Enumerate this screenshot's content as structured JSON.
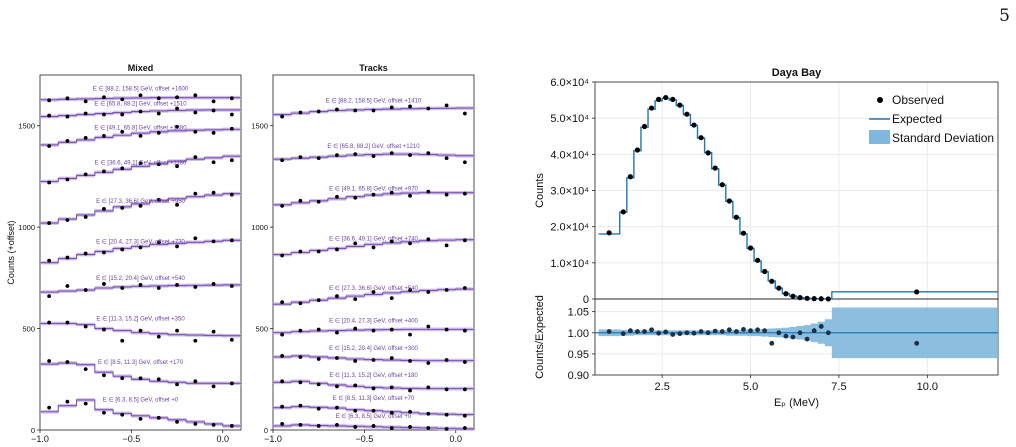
{
  "page_number": "5",
  "chart_data": [
    {
      "type": "line",
      "title": "Mixed",
      "ylabel": "Counts (+offset)",
      "xlim": [
        -1.0,
        0.1
      ],
      "ylim": [
        0,
        1750
      ],
      "x_ticks": [
        -1.0,
        -0.5,
        0.0
      ],
      "x_tick_labels": [
        "−1.0",
        "−0.5",
        "0.0"
      ],
      "y_ticks": [
        0,
        500,
        1000,
        1500
      ],
      "y_tick_labels": [
        "0",
        "500",
        "1000",
        "1500"
      ],
      "line_color": "#7b52b0",
      "band_color": "#c8b4e4",
      "x": [
        -1.0,
        -0.9,
        -0.8,
        -0.7,
        -0.6,
        -0.5,
        -0.4,
        -0.3,
        -0.2,
        -0.1,
        0.0,
        0.1
      ],
      "series": [
        {
          "label": "E ∈ [6.3, 8.5] GeV, offset +0",
          "expected": [
            90,
            120,
            148,
            100,
            82,
            70,
            60,
            50,
            40,
            30,
            20,
            20
          ],
          "observed": [
            110,
            140,
            130,
            85,
            75,
            55,
            60,
            40,
            30,
            25,
            20
          ]
        },
        {
          "label": "E ∈ [8.5, 11.3] GeV, offset +170",
          "expected": [
            325,
            330,
            322,
            285,
            265,
            250,
            240,
            235,
            230,
            230,
            230,
            230
          ],
          "observed": [
            340,
            335,
            300,
            270,
            255,
            255,
            250,
            225,
            240,
            215,
            230
          ]
        },
        {
          "label": "E ∈ [11.3, 15.2] GeV, offset +350",
          "expected": [
            525,
            525,
            520,
            500,
            490,
            480,
            475,
            470,
            468,
            466,
            465,
            465
          ],
          "observed": [
            530,
            530,
            510,
            495,
            440,
            490,
            460,
            490,
            440,
            485,
            445
          ]
        },
        {
          "label": "E ∈ [15.2, 20.4] GeV, offset +540",
          "expected": [
            680,
            685,
            690,
            700,
            705,
            708,
            710,
            712,
            713,
            714,
            715,
            715
          ],
          "observed": [
            660,
            710,
            690,
            720,
            700,
            715,
            700,
            715,
            705,
            720,
            710
          ]
        },
        {
          "label": "E ∈ [20.4, 27.3] GeV, offset +730",
          "expected": [
            825,
            845,
            865,
            880,
            895,
            905,
            915,
            920,
            925,
            930,
            935,
            935
          ],
          "observed": [
            835,
            850,
            870,
            875,
            890,
            900,
            925,
            905,
            945,
            930,
            935
          ]
        },
        {
          "label": "E ∈ [27.3, 36.6] GeV, offset +950",
          "expected": [
            1020,
            1040,
            1060,
            1080,
            1100,
            1115,
            1130,
            1140,
            1150,
            1158,
            1165,
            1165
          ],
          "observed": [
            1020,
            1035,
            1050,
            1090,
            1095,
            1105,
            1135,
            1110,
            1165,
            1170,
            1160
          ]
        },
        {
          "label": "E ∈ [36.6, 49.1] GeV, offset +1180",
          "expected": [
            1225,
            1240,
            1255,
            1270,
            1285,
            1300,
            1312,
            1325,
            1335,
            1342,
            1350,
            1350
          ],
          "observed": [
            1220,
            1235,
            1260,
            1275,
            1290,
            1315,
            1310,
            1300,
            1345,
            1320,
            1330
          ]
        },
        {
          "label": "E ∈ [49.1, 65.8] GeV, offset +1380",
          "expected": [
            1405,
            1418,
            1430,
            1442,
            1453,
            1463,
            1470,
            1475,
            1478,
            1480,
            1482,
            1482
          ],
          "observed": [
            1400,
            1425,
            1440,
            1450,
            1470,
            1450,
            1465,
            1495,
            1470,
            1465,
            1485
          ]
        },
        {
          "label": "E ∈ [65.8, 88.2] GeV, offset +1510",
          "expected": [
            1545,
            1550,
            1555,
            1560,
            1565,
            1570,
            1573,
            1575,
            1577,
            1578,
            1578,
            1578
          ],
          "observed": [
            1550,
            1545,
            1560,
            1555,
            1555,
            1570,
            1560,
            1585,
            1565,
            1575,
            1555
          ]
        },
        {
          "label": "E ∈ [88.2, 158.5] GeV, offset +1600",
          "expected": [
            1628,
            1630,
            1632,
            1634,
            1636,
            1637,
            1638,
            1638,
            1638,
            1638,
            1638,
            1638
          ],
          "observed": [
            1625,
            1635,
            1620,
            1640,
            1630,
            1650,
            1635,
            1640,
            1650,
            1620,
            1635
          ]
        }
      ]
    },
    {
      "type": "line",
      "title": "Tracks",
      "xlim": [
        -1.0,
        0.1
      ],
      "ylim": [
        0,
        1750
      ],
      "x_ticks": [
        -1.0,
        -0.5,
        0.0
      ],
      "x_tick_labels": [
        "−1.0",
        "−0.5",
        "0.0"
      ],
      "y_ticks": [
        0,
        500,
        1000,
        1500
      ],
      "y_tick_labels": [
        "0",
        "500",
        "1000",
        "1500"
      ],
      "line_color": "#7b52b0",
      "band_color": "#c8b4e4",
      "x": [
        -1.0,
        -0.9,
        -0.8,
        -0.7,
        -0.6,
        -0.5,
        -0.4,
        -0.3,
        -0.2,
        -0.1,
        0.0,
        0.1
      ],
      "series": [
        {
          "label": "E ∈ [6.3, 8.5] GeV, offset +0",
          "expected": [
            20,
            25,
            22,
            20,
            18,
            16,
            14,
            12,
            10,
            8,
            6,
            6
          ],
          "observed": [
            30,
            25,
            20,
            25,
            15,
            20,
            10,
            15,
            10,
            5,
            10
          ]
        },
        {
          "label": "E ∈ [8.5, 11.3] GeV, offset +70",
          "expected": [
            110,
            115,
            112,
            108,
            100,
            95,
            90,
            85,
            80,
            78,
            76,
            76
          ],
          "observed": [
            115,
            120,
            105,
            110,
            95,
            95,
            85,
            90,
            80,
            75,
            70
          ]
        },
        {
          "label": "E ∈ [11.3, 15.2] GeV, offset +180",
          "expected": [
            235,
            240,
            230,
            222,
            215,
            210,
            207,
            205,
            204,
            204,
            204,
            204
          ],
          "observed": [
            240,
            235,
            225,
            215,
            220,
            205,
            210,
            195,
            210,
            200,
            200
          ]
        },
        {
          "label": "E ∈ [15.2, 20.4] GeV, offset +300",
          "expected": [
            360,
            365,
            360,
            355,
            350,
            347,
            345,
            343,
            342,
            342,
            342,
            342
          ],
          "observed": [
            365,
            360,
            350,
            355,
            340,
            345,
            355,
            340,
            330,
            345,
            335
          ]
        },
        {
          "label": "E ∈ [20.4, 27.3] GeV, offset +400",
          "expected": [
            480,
            485,
            488,
            490,
            492,
            494,
            495,
            496,
            496,
            496,
            496,
            496
          ],
          "observed": [
            470,
            490,
            495,
            480,
            500,
            490,
            495,
            470,
            510,
            495,
            490
          ]
        },
        {
          "label": "E ∈ [27.3, 36.6] GeV, offset +540",
          "expected": [
            620,
            630,
            640,
            650,
            660,
            668,
            676,
            682,
            688,
            692,
            695,
            695
          ],
          "observed": [
            630,
            625,
            640,
            660,
            645,
            680,
            650,
            690,
            680,
            690,
            700
          ]
        },
        {
          "label": "E ∈ [36.6, 49.1] GeV, offset +740",
          "expected": [
            865,
            875,
            885,
            895,
            905,
            915,
            922,
            928,
            933,
            936,
            938,
            938
          ],
          "observed": [
            860,
            880,
            880,
            890,
            920,
            900,
            930,
            920,
            940,
            910,
            935
          ]
        },
        {
          "label": "E ∈ [49.1, 65.8] GeV, offset +970",
          "expected": [
            1110,
            1120,
            1130,
            1140,
            1150,
            1158,
            1164,
            1168,
            1170,
            1170,
            1170,
            1170
          ],
          "observed": [
            1105,
            1130,
            1125,
            1150,
            1145,
            1160,
            1170,
            1155,
            1175,
            1160,
            1165
          ]
        },
        {
          "label": "E ∈ [65.8, 88.2] GeV, offset +1210",
          "expected": [
            1335,
            1340,
            1345,
            1350,
            1355,
            1358,
            1360,
            1360,
            1358,
            1355,
            1352,
            1352
          ],
          "observed": [
            1330,
            1345,
            1340,
            1355,
            1360,
            1350,
            1365,
            1355,
            1365,
            1340,
            1320
          ]
        },
        {
          "label": "E ∈ [88.2, 158.5] GeV, offset +1410",
          "expected": [
            1555,
            1562,
            1570,
            1575,
            1578,
            1580,
            1582,
            1584,
            1585,
            1586,
            1587,
            1587
          ],
          "observed": [
            1545,
            1565,
            1570,
            1580,
            1575,
            1575,
            1590,
            1595,
            1585,
            1600,
            1560
          ]
        }
      ]
    },
    {
      "type": "line",
      "title": "Daya Bay",
      "ylabel": "Counts",
      "xlim": [
        0.6,
        12.0
      ],
      "ylim": [
        0,
        60000
      ],
      "x_ticks": [
        2.5,
        5.0,
        7.5,
        10.0
      ],
      "y_ticks": [
        0,
        10000,
        20000,
        30000,
        40000,
        50000,
        60000
      ],
      "y_tick_labels": [
        "0",
        "1.0×10⁴",
        "2.0×10⁴",
        "3.0×10⁴",
        "4.0×10⁴",
        "5.0×10⁴",
        "6.0×10⁴"
      ],
      "legend_position": "top-right",
      "legend": [
        "Observed",
        "Expected",
        "Standard Deviation"
      ],
      "expected_color": "#1f77b4",
      "band_color": "#7fb8dc",
      "bin_edges": [
        0.7,
        1.3,
        1.5,
        1.7,
        1.9,
        2.1,
        2.3,
        2.5,
        2.7,
        2.9,
        3.1,
        3.3,
        3.5,
        3.7,
        3.9,
        4.1,
        4.3,
        4.5,
        4.7,
        4.9,
        5.1,
        5.3,
        5.5,
        5.7,
        5.9,
        6.1,
        6.3,
        6.5,
        6.7,
        6.9,
        7.1,
        7.3,
        12.0
      ],
      "expected": [
        18000,
        24000,
        33500,
        41000,
        47500,
        52500,
        54800,
        55500,
        55000,
        53500,
        51000,
        48000,
        44500,
        40500,
        36000,
        31500,
        27000,
        22500,
        18000,
        14000,
        10500,
        7500,
        5000,
        3000,
        1500,
        800,
        400,
        200,
        100,
        50,
        20,
        2000
      ],
      "observed_x": [
        1.0,
        1.4,
        1.6,
        1.8,
        2.0,
        2.2,
        2.4,
        2.6,
        2.8,
        3.0,
        3.2,
        3.4,
        3.6,
        3.8,
        4.0,
        4.2,
        4.4,
        4.6,
        4.8,
        5.0,
        5.2,
        5.4,
        5.6,
        5.8,
        6.0,
        6.2,
        6.4,
        6.6,
        6.8,
        7.0,
        7.2,
        9.7
      ],
      "observed": [
        18300,
        24100,
        33800,
        41200,
        47700,
        52800,
        55200,
        55700,
        55200,
        53600,
        51100,
        48100,
        44600,
        40400,
        36200,
        31600,
        27100,
        22600,
        18200,
        14100,
        10700,
        7600,
        4900,
        3000,
        1450,
        780,
        380,
        190,
        95,
        60,
        20,
        1950
      ],
      "ratio": {
        "ylabel": "Counts/Expected",
        "ylim": [
          0.9,
          1.08
        ],
        "y_ticks": [
          0.9,
          0.95,
          1.0,
          1.05
        ],
        "y_tick_labels": [
          "0.90",
          "0.95",
          "1.00",
          "1.05"
        ],
        "xlabel": "Eₚ (MeV)",
        "x_tick_labels": [
          "2.5",
          "5.0",
          "7.5",
          "10.0"
        ],
        "observed_x": [
          1.0,
          1.4,
          1.6,
          1.8,
          2.0,
          2.2,
          2.4,
          2.6,
          2.8,
          3.0,
          3.2,
          3.4,
          3.6,
          3.8,
          4.0,
          4.2,
          4.4,
          4.6,
          4.8,
          5.0,
          5.2,
          5.4,
          5.6,
          5.8,
          6.0,
          6.2,
          6.4,
          6.6,
          6.8,
          7.0,
          7.2,
          9.7
        ],
        "observed": [
          1.003,
          0.998,
          1.005,
          1.003,
          1.003,
          1.007,
          0.999,
          1.002,
          0.996,
          0.998,
          1.0,
          0.999,
          1.003,
          1.0,
          1.004,
          1.003,
          1.007,
          1.003,
          1.008,
          1.005,
          1.007,
          1.005,
          0.975,
          1.0,
          0.992,
          0.99,
          1.0,
          0.985,
          1.005,
          1.015,
          1.0,
          0.975
        ],
        "band_edges": [
          0.7,
          1.3,
          1.5,
          1.7,
          1.9,
          2.1,
          2.3,
          2.5,
          2.7,
          2.9,
          3.1,
          3.3,
          3.5,
          3.7,
          3.9,
          4.1,
          4.3,
          4.5,
          4.7,
          4.9,
          5.1,
          5.3,
          5.5,
          5.7,
          5.9,
          6.1,
          6.3,
          6.5,
          6.7,
          6.9,
          7.1,
          7.3,
          12.0
        ],
        "band_halfwidth": [
          0.008,
          0.007,
          0.007,
          0.006,
          0.006,
          0.006,
          0.006,
          0.006,
          0.006,
          0.006,
          0.006,
          0.006,
          0.006,
          0.006,
          0.006,
          0.006,
          0.007,
          0.007,
          0.007,
          0.008,
          0.008,
          0.009,
          0.01,
          0.011,
          0.012,
          0.014,
          0.016,
          0.018,
          0.022,
          0.026,
          0.032,
          0.06
        ]
      }
    }
  ]
}
